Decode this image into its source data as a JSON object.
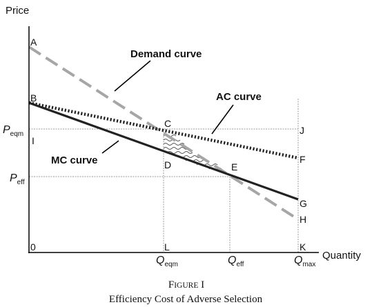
{
  "axes": {
    "y_label": "Price",
    "x_label": "Quantity"
  },
  "price_labels": {
    "p_eqm_main": "P",
    "p_eqm_sub": "eqm",
    "p_eff_main": "P",
    "p_eff_sub": "eff"
  },
  "quantity_labels": {
    "q_eqm_main": "Q",
    "q_eqm_sub": "eqm",
    "q_eff_main": "Q",
    "q_eff_sub": "eff",
    "q_max_main": "Q",
    "q_max_sub": "max"
  },
  "points": {
    "A": "A",
    "B": "B",
    "C": "C",
    "D": "D",
    "E": "E",
    "F": "F",
    "G": "G",
    "H": "H",
    "I": "I",
    "J": "J",
    "K": "K",
    "L": "L",
    "origin": "0"
  },
  "curves": {
    "demand": "Demand curve",
    "ac": "AC curve",
    "mc": "MC curve"
  },
  "caption": {
    "figure_prefix": "F",
    "figure_rest": "IGURE",
    "figure_number": "I",
    "title": "Efficiency Cost of Adverse Selection"
  },
  "colors": {
    "axis": "#000000",
    "mc_curve": "#222222",
    "ac_curve": "#222222",
    "demand_curve": "#a6a6a6",
    "guide_lines": "#9a9a9a"
  }
}
